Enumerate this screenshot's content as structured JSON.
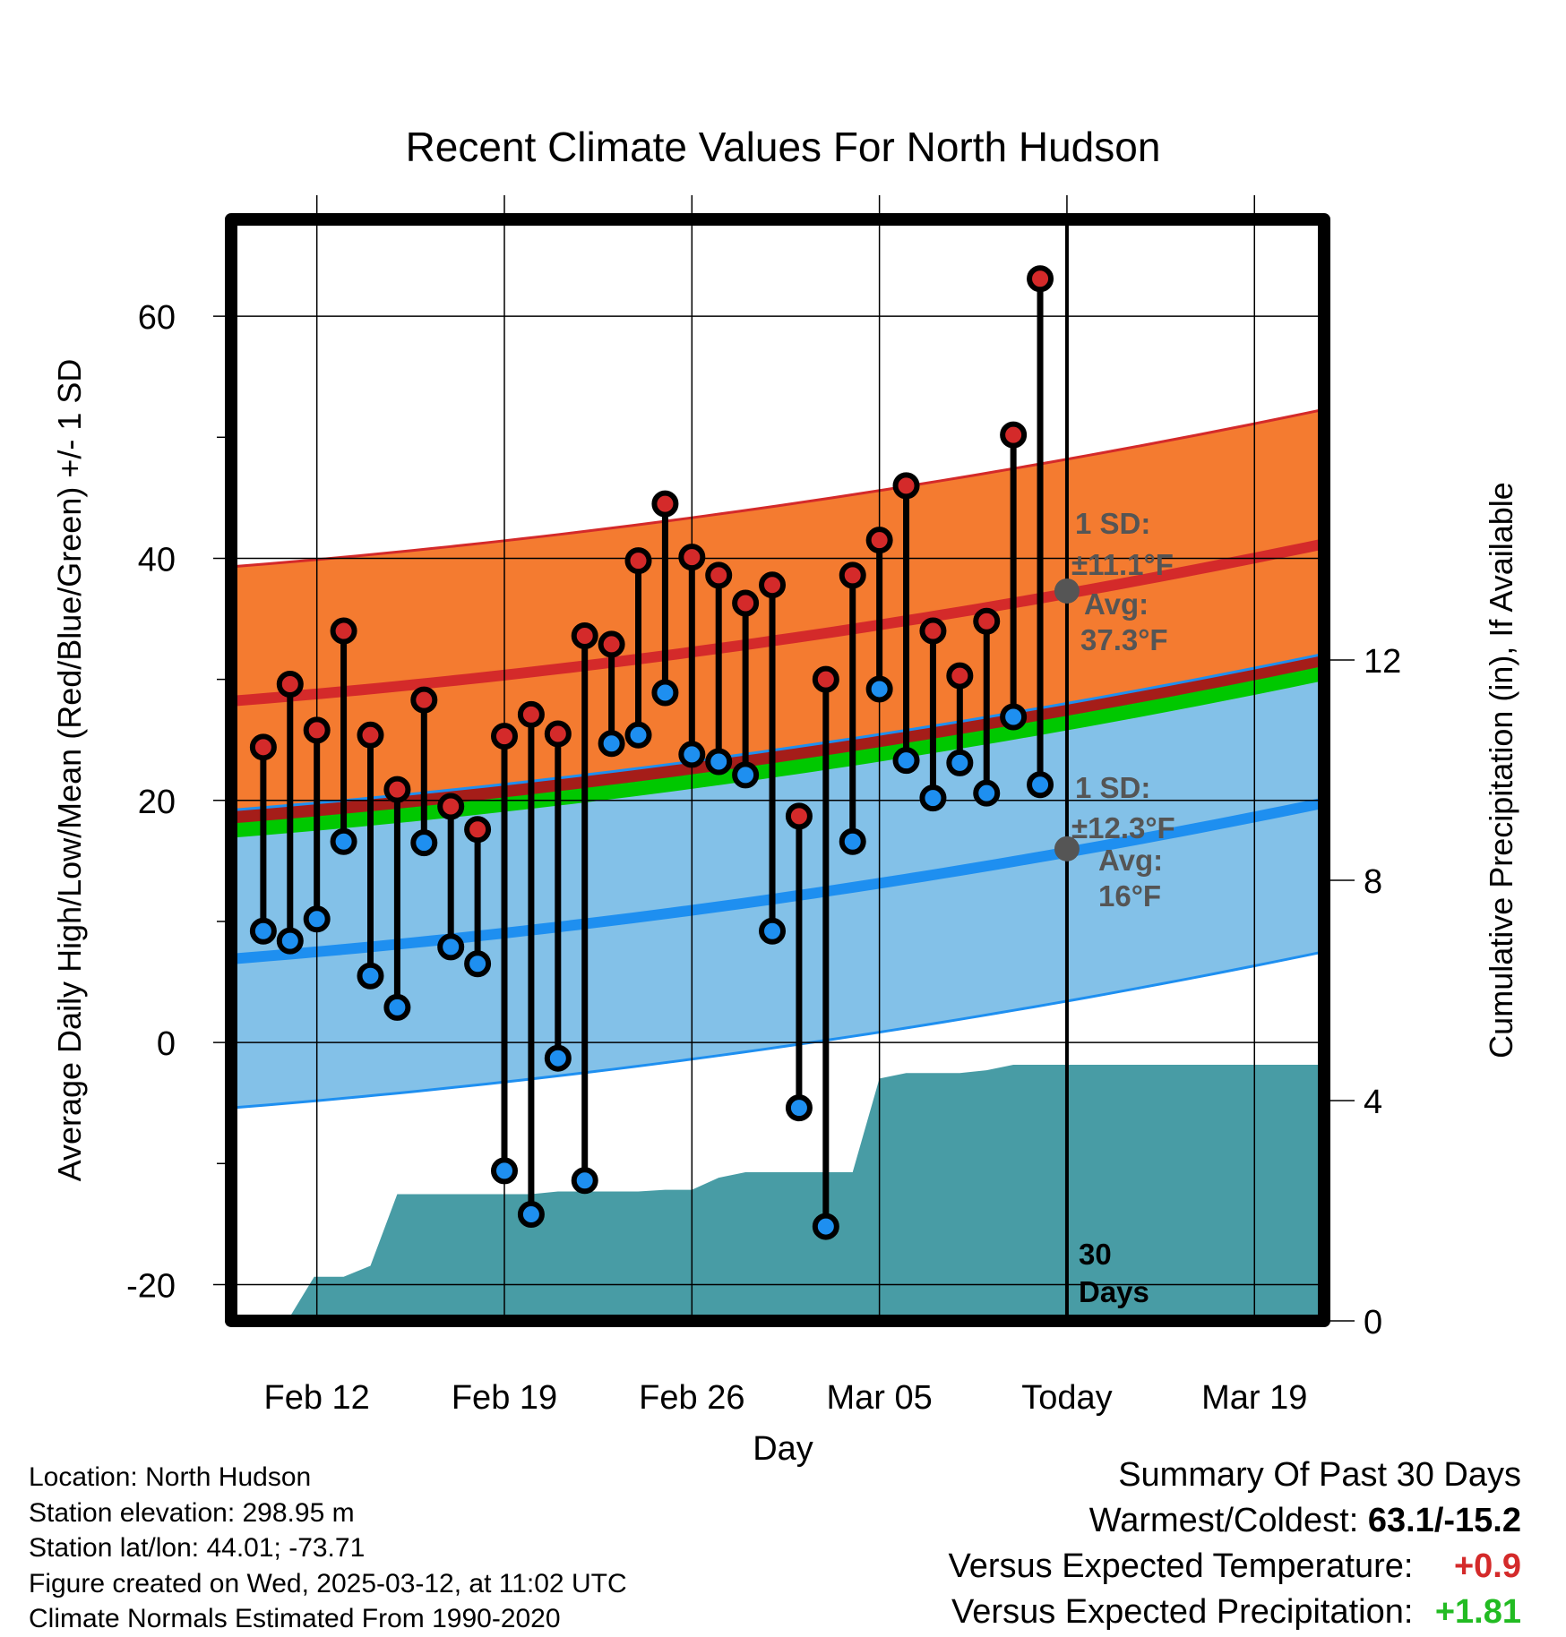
{
  "chart_data": {
    "type": "line",
    "title": "Recent Climate Values For North Hudson",
    "xlabel": "Day",
    "ylabel": "Average Daily High/Low/Mean (Red/Blue/Green) +/- 1 SD",
    "y2label": "Cumulative Precipitation (in), If Available",
    "ylim": [
      -23,
      68
    ],
    "y2lim": [
      0,
      20
    ],
    "yticks": [
      -20,
      0,
      20,
      40,
      60
    ],
    "y2ticks": [
      0,
      4,
      8,
      12
    ],
    "xticks": [
      {
        "day": 12,
        "label": "Feb 12"
      },
      {
        "day": 19,
        "label": "Feb 19"
      },
      {
        "day": 26,
        "label": "Feb 26"
      },
      {
        "day": 33,
        "label": "Mar 05"
      },
      {
        "day": 40,
        "label": "Today"
      },
      {
        "day": 47,
        "label": "Mar 19"
      }
    ],
    "xlim": [
      8.8,
      49.6
    ],
    "grid": true,
    "days": [
      10,
      11,
      12,
      13,
      14,
      15,
      16,
      17,
      18,
      19,
      20,
      21,
      22,
      23,
      24,
      25,
      26,
      27,
      28,
      29,
      30,
      31,
      32,
      33,
      34,
      35,
      36,
      37,
      38,
      39
    ],
    "highs": [
      24.4,
      29.6,
      25.8,
      34.0,
      25.4,
      20.9,
      28.3,
      19.5,
      17.6,
      25.3,
      27.1,
      25.5,
      33.6,
      32.9,
      39.8,
      44.5,
      40.1,
      38.6,
      36.3,
      37.8,
      18.7,
      30.0,
      38.6,
      41.5,
      46.0,
      34.0,
      30.3,
      34.8,
      50.2,
      63.1
    ],
    "lows": [
      9.2,
      8.4,
      10.2,
      16.6,
      5.5,
      2.9,
      16.5,
      7.9,
      6.5,
      -10.6,
      -14.2,
      -1.3,
      -11.4,
      24.7,
      25.4,
      28.9,
      23.8,
      23.2,
      22.1,
      9.2,
      -5.4,
      -15.2,
      16.6,
      29.2,
      23.3,
      20.2,
      23.1,
      20.6,
      26.9,
      21.3
    ],
    "normal_high_start": 28.2,
    "normal_high_end": 41.2,
    "normal_high_sd": 11.1,
    "normal_low_start": 6.9,
    "normal_low_end": 19.8,
    "normal_low_sd": 12.3,
    "normal_mean_start": 17.5,
    "normal_mean_end": 30.5,
    "precip_x": [
      8.8,
      10.9,
      11.9,
      13.0,
      14.0,
      15.0,
      16.0,
      17.0,
      18.0,
      19.0,
      20.0,
      21.0,
      22.0,
      23.0,
      24.0,
      25.0,
      26.0,
      27.0,
      28.0,
      29.0,
      30.0,
      31.0,
      32.0,
      33.0,
      34.0,
      35.0,
      36.0,
      37.0,
      38.0,
      39.0,
      40.0,
      49.6
    ],
    "precip_y": [
      0,
      0,
      0.8,
      0.8,
      1.0,
      2.3,
      2.3,
      2.3,
      2.3,
      2.3,
      2.3,
      2.35,
      2.35,
      2.35,
      2.35,
      2.38,
      2.38,
      2.6,
      2.7,
      2.7,
      2.7,
      2.7,
      2.7,
      4.4,
      4.5,
      4.5,
      4.5,
      4.55,
      4.65,
      4.65,
      4.65,
      4.65
    ],
    "annotations": {
      "high_sd": "1 SD:",
      "high_sd_val": "±11.1°F",
      "high_avg": "Avg:",
      "high_avg_val": "37.3°F",
      "low_sd": "1 SD:",
      "low_sd_val": "±12.3°F",
      "low_avg": "Avg:",
      "low_avg_val": "16°F",
      "days_num": "30",
      "days_word": "Days"
    },
    "today_day": 40,
    "today_high_avg": 37.3,
    "today_low_avg": 16.0,
    "colors": {
      "high_band": "#F47B30",
      "high_line": "#D42A2A",
      "low_band": "#83C1E8",
      "low_line": "#1E8FF0",
      "mean_line": "#00C800",
      "overlap": "#A01818",
      "precip": "#489CA5",
      "high_marker": "#D42A2A",
      "low_marker": "#1E8FF0",
      "avg_marker": "#555555"
    }
  },
  "info": {
    "location": "Location: North Hudson",
    "elevation": "Station elevation: 298.95 m",
    "latlon": "Station lat/lon: 44.01; -73.71",
    "created": "Figure created on Wed, 2025-03-12, at 11:02 UTC",
    "normals": "Climate Normals Estimated From 1990-2020"
  },
  "summary": {
    "title": "Summary Of Past 30 Days",
    "warm_cold_label": "Warmest/Coldest:",
    "warm_cold_value": "63.1/-15.2",
    "temp_label": "Versus Expected Temperature:",
    "temp_value": "+0.9",
    "temp_color": "#D42A2A",
    "precip_label": "Versus Expected Precipitation:",
    "precip_value": "+1.81",
    "precip_color": "#22BB22"
  }
}
